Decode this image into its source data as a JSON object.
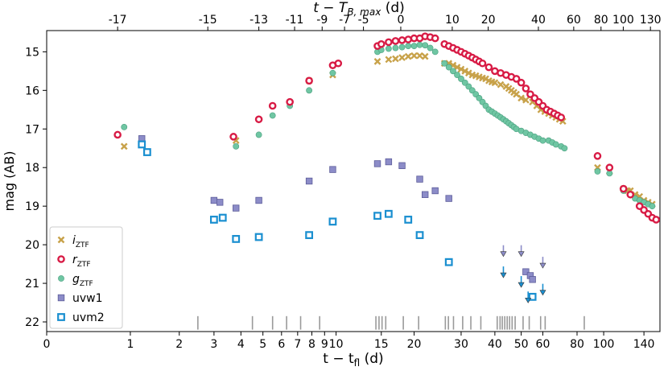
{
  "chart_data": {
    "type": "scatter",
    "title": "",
    "top_xlabel": {
      "main": "t − T",
      "sub": "B, max",
      "unit": " (d)"
    },
    "xlabel": {
      "main": "t − t",
      "sub": "fl",
      "unit": " (d)"
    },
    "ylabel": "mag (AB)",
    "yaxis": {
      "inverted": true,
      "ylim": [
        22.25,
        14.45
      ],
      "ticks": [
        15,
        16,
        17,
        18,
        19,
        20,
        21,
        22
      ]
    },
    "xaxis": {
      "scale": "log(t+1)",
      "xlim": [
        0,
        160
      ],
      "ticks": [
        0,
        1,
        2,
        3,
        4,
        5,
        6,
        7,
        8,
        9,
        10,
        15,
        20,
        30,
        40,
        50,
        60,
        80,
        100,
        140
      ],
      "tick_labels": [
        "0",
        "1",
        "2",
        "3",
        "4",
        "5",
        "6",
        "7",
        "8",
        "9",
        "10",
        "15",
        "20",
        "30",
        "40",
        "50",
        "60",
        "80",
        "100",
        "140"
      ]
    },
    "top_axis": {
      "offset_days": 17.8,
      "ticks": [
        -17,
        -15,
        -13,
        -11,
        -9,
        -7,
        -5,
        0,
        10,
        20,
        40,
        60,
        80,
        100,
        130
      ],
      "tick_labels": [
        "-17",
        "-15",
        "-13",
        "-11",
        "-9",
        "-7",
        "-5",
        "0",
        "10",
        "20",
        "40",
        "60",
        "80",
        "100",
        "130"
      ]
    },
    "legend": {
      "position": "lower-left",
      "entries": [
        {
          "key": "i",
          "label": "i",
          "sub": "ZTF"
        },
        {
          "key": "r",
          "label": "r",
          "sub": "ZTF"
        },
        {
          "key": "g",
          "label": "g",
          "sub": "ZTF"
        },
        {
          "key": "uvw1",
          "label": "uvw1",
          "sub": ""
        },
        {
          "key": "uvm2",
          "label": "uvm2",
          "sub": ""
        }
      ]
    },
    "series": [
      {
        "key": "i",
        "name": "i_ZTF",
        "color": "#c8a24a",
        "marker": "x",
        "points": [
          [
            0.9,
            17.45
          ],
          [
            3.8,
            17.3
          ],
          [
            7.8,
            15.75
          ],
          [
            9.7,
            15.6
          ],
          [
            14.5,
            15.25
          ],
          [
            16,
            15.2
          ],
          [
            17,
            15.18
          ],
          [
            18,
            15.15
          ],
          [
            19,
            15.12
          ],
          [
            20,
            15.1
          ],
          [
            21,
            15.1
          ],
          [
            22,
            15.12
          ],
          [
            26,
            15.3
          ],
          [
            27,
            15.3
          ],
          [
            28,
            15.35
          ],
          [
            29,
            15.4
          ],
          [
            30,
            15.45
          ],
          [
            31,
            15.5
          ],
          [
            32,
            15.55
          ],
          [
            33,
            15.6
          ],
          [
            34,
            15.62
          ],
          [
            35,
            15.65
          ],
          [
            36,
            15.68
          ],
          [
            37,
            15.7
          ],
          [
            38,
            15.75
          ],
          [
            39,
            15.78
          ],
          [
            40,
            15.8
          ],
          [
            42,
            15.85
          ],
          [
            44,
            15.9
          ],
          [
            45,
            15.95
          ],
          [
            46,
            16.0
          ],
          [
            47,
            16.05
          ],
          [
            48,
            16.1
          ],
          [
            50,
            16.2
          ],
          [
            52,
            16.25
          ],
          [
            55,
            16.3
          ],
          [
            57,
            16.4
          ],
          [
            59,
            16.5
          ],
          [
            61,
            16.55
          ],
          [
            63,
            16.6
          ],
          [
            65,
            16.65
          ],
          [
            67,
            16.7
          ],
          [
            69,
            16.75
          ],
          [
            71,
            16.8
          ],
          [
            95,
            18.0
          ],
          [
            105,
            18.1
          ],
          [
            118,
            18.55
          ],
          [
            122,
            18.6
          ],
          [
            125,
            18.6
          ],
          [
            130,
            18.7
          ],
          [
            135,
            18.75
          ],
          [
            140,
            18.85
          ],
          [
            145,
            18.9
          ],
          [
            150,
            18.95
          ]
        ]
      },
      {
        "key": "r",
        "name": "r_ZTF",
        "color": "#d81b45",
        "marker": "o-open",
        "points": [
          [
            0.8,
            17.15
          ],
          [
            3.7,
            17.2
          ],
          [
            4.8,
            16.75
          ],
          [
            5.5,
            16.4
          ],
          [
            6.5,
            16.3
          ],
          [
            7.8,
            15.75
          ],
          [
            9.7,
            15.35
          ],
          [
            10.2,
            15.3
          ],
          [
            14.5,
            14.85
          ],
          [
            15,
            14.8
          ],
          [
            16,
            14.75
          ],
          [
            17,
            14.72
          ],
          [
            18,
            14.7
          ],
          [
            19,
            14.68
          ],
          [
            20,
            14.65
          ],
          [
            21,
            14.65
          ],
          [
            22,
            14.6
          ],
          [
            23,
            14.62
          ],
          [
            24,
            14.65
          ],
          [
            26,
            14.8
          ],
          [
            27,
            14.85
          ],
          [
            28,
            14.9
          ],
          [
            29,
            14.95
          ],
          [
            30,
            15.0
          ],
          [
            31,
            15.05
          ],
          [
            32,
            15.1
          ],
          [
            33,
            15.15
          ],
          [
            34,
            15.2
          ],
          [
            35,
            15.25
          ],
          [
            36,
            15.3
          ],
          [
            38,
            15.4
          ],
          [
            40,
            15.5
          ],
          [
            42,
            15.55
          ],
          [
            44,
            15.6
          ],
          [
            46,
            15.65
          ],
          [
            48,
            15.7
          ],
          [
            50,
            15.8
          ],
          [
            52,
            15.95
          ],
          [
            54,
            16.1
          ],
          [
            56,
            16.2
          ],
          [
            58,
            16.3
          ],
          [
            60,
            16.4
          ],
          [
            62,
            16.5
          ],
          [
            64,
            16.55
          ],
          [
            66,
            16.6
          ],
          [
            68,
            16.65
          ],
          [
            70,
            16.7
          ],
          [
            95,
            17.7
          ],
          [
            105,
            18.0
          ],
          [
            118,
            18.55
          ],
          [
            125,
            18.7
          ],
          [
            135,
            19.0
          ],
          [
            140,
            19.1
          ],
          [
            145,
            19.2
          ],
          [
            150,
            19.3
          ],
          [
            155,
            19.35
          ]
        ]
      },
      {
        "key": "g",
        "name": "g_ZTF",
        "color": "#6fc6a3",
        "marker": "o",
        "points": [
          [
            0.9,
            16.95
          ],
          [
            3.8,
            17.45
          ],
          [
            4.8,
            17.15
          ],
          [
            5.5,
            16.65
          ],
          [
            6.5,
            16.4
          ],
          [
            7.8,
            16.0
          ],
          [
            9.7,
            15.55
          ],
          [
            14.5,
            15.0
          ],
          [
            15,
            14.95
          ],
          [
            16,
            14.92
          ],
          [
            17,
            14.9
          ],
          [
            18,
            14.88
          ],
          [
            19,
            14.85
          ],
          [
            20,
            14.85
          ],
          [
            21,
            14.82
          ],
          [
            22,
            14.83
          ],
          [
            23,
            14.9
          ],
          [
            24,
            15.0
          ],
          [
            26,
            15.3
          ],
          [
            27,
            15.4
          ],
          [
            28,
            15.5
          ],
          [
            29,
            15.6
          ],
          [
            30,
            15.7
          ],
          [
            31,
            15.8
          ],
          [
            32,
            15.9
          ],
          [
            33,
            16.0
          ],
          [
            34,
            16.1
          ],
          [
            35,
            16.2
          ],
          [
            36,
            16.3
          ],
          [
            37,
            16.4
          ],
          [
            38,
            16.5
          ],
          [
            39,
            16.55
          ],
          [
            40,
            16.6
          ],
          [
            41,
            16.65
          ],
          [
            42,
            16.7
          ],
          [
            43,
            16.75
          ],
          [
            44,
            16.8
          ],
          [
            45,
            16.85
          ],
          [
            46,
            16.9
          ],
          [
            47,
            16.95
          ],
          [
            48,
            17.0
          ],
          [
            50,
            17.05
          ],
          [
            52,
            17.1
          ],
          [
            54,
            17.15
          ],
          [
            56,
            17.2
          ],
          [
            58,
            17.25
          ],
          [
            60,
            17.3
          ],
          [
            63,
            17.3
          ],
          [
            65,
            17.35
          ],
          [
            67,
            17.4
          ],
          [
            70,
            17.45
          ],
          [
            72,
            17.5
          ],
          [
            95,
            18.1
          ],
          [
            105,
            18.15
          ],
          [
            118,
            18.6
          ],
          [
            125,
            18.7
          ],
          [
            130,
            18.8
          ],
          [
            135,
            18.85
          ],
          [
            140,
            18.9
          ],
          [
            145,
            18.95
          ],
          [
            150,
            19.0
          ]
        ]
      },
      {
        "key": "uvw1",
        "name": "uvw1",
        "color": "#8c8cc8",
        "marker": "s",
        "points": [
          [
            1.2,
            17.25
          ],
          [
            3.0,
            18.85
          ],
          [
            3.2,
            18.9
          ],
          [
            3.8,
            19.05
          ],
          [
            4.8,
            18.85
          ],
          [
            7.8,
            18.35
          ],
          [
            9.7,
            18.05
          ],
          [
            14.5,
            17.9
          ],
          [
            16,
            17.85
          ],
          [
            18,
            17.95
          ],
          [
            21,
            18.3
          ],
          [
            22,
            18.7
          ],
          [
            24,
            18.6
          ],
          [
            27,
            18.8
          ],
          [
            52,
            20.7
          ],
          [
            54,
            20.8
          ],
          [
            55,
            20.9
          ]
        ],
        "upper_limits": [
          [
            43,
            20.2
          ],
          [
            50,
            20.2
          ],
          [
            60,
            20.5
          ]
        ]
      },
      {
        "key": "uvm2",
        "name": "uvm2",
        "color": "#1a8fd0",
        "marker": "s-open",
        "points": [
          [
            1.2,
            17.4
          ],
          [
            1.3,
            17.6
          ],
          [
            3.0,
            19.35
          ],
          [
            3.3,
            19.3
          ],
          [
            3.8,
            19.85
          ],
          [
            4.8,
            19.8
          ],
          [
            7.8,
            19.75
          ],
          [
            9.7,
            19.4
          ],
          [
            14.5,
            19.25
          ],
          [
            16,
            19.2
          ],
          [
            19,
            19.35
          ],
          [
            21,
            19.75
          ],
          [
            27,
            20.45
          ],
          [
            55,
            21.35
          ]
        ],
        "upper_limits": [
          [
            43,
            20.75
          ],
          [
            50,
            21.0
          ],
          [
            53,
            21.4
          ],
          [
            60,
            21.2
          ]
        ]
      }
    ],
    "observation_epochs": [
      2.5,
      4.5,
      5.5,
      6.3,
      7.2,
      8.6,
      14.3,
      14.7,
      15.1,
      15.6,
      18.2,
      20.8,
      26.2,
      26.9,
      28.1,
      30.4,
      32.6,
      35.5,
      40.8,
      41.8,
      42.6,
      43.5,
      44.4,
      45.3,
      46.3,
      47.5,
      50.8,
      53.5,
      58.9,
      61.2,
      85
    ]
  }
}
